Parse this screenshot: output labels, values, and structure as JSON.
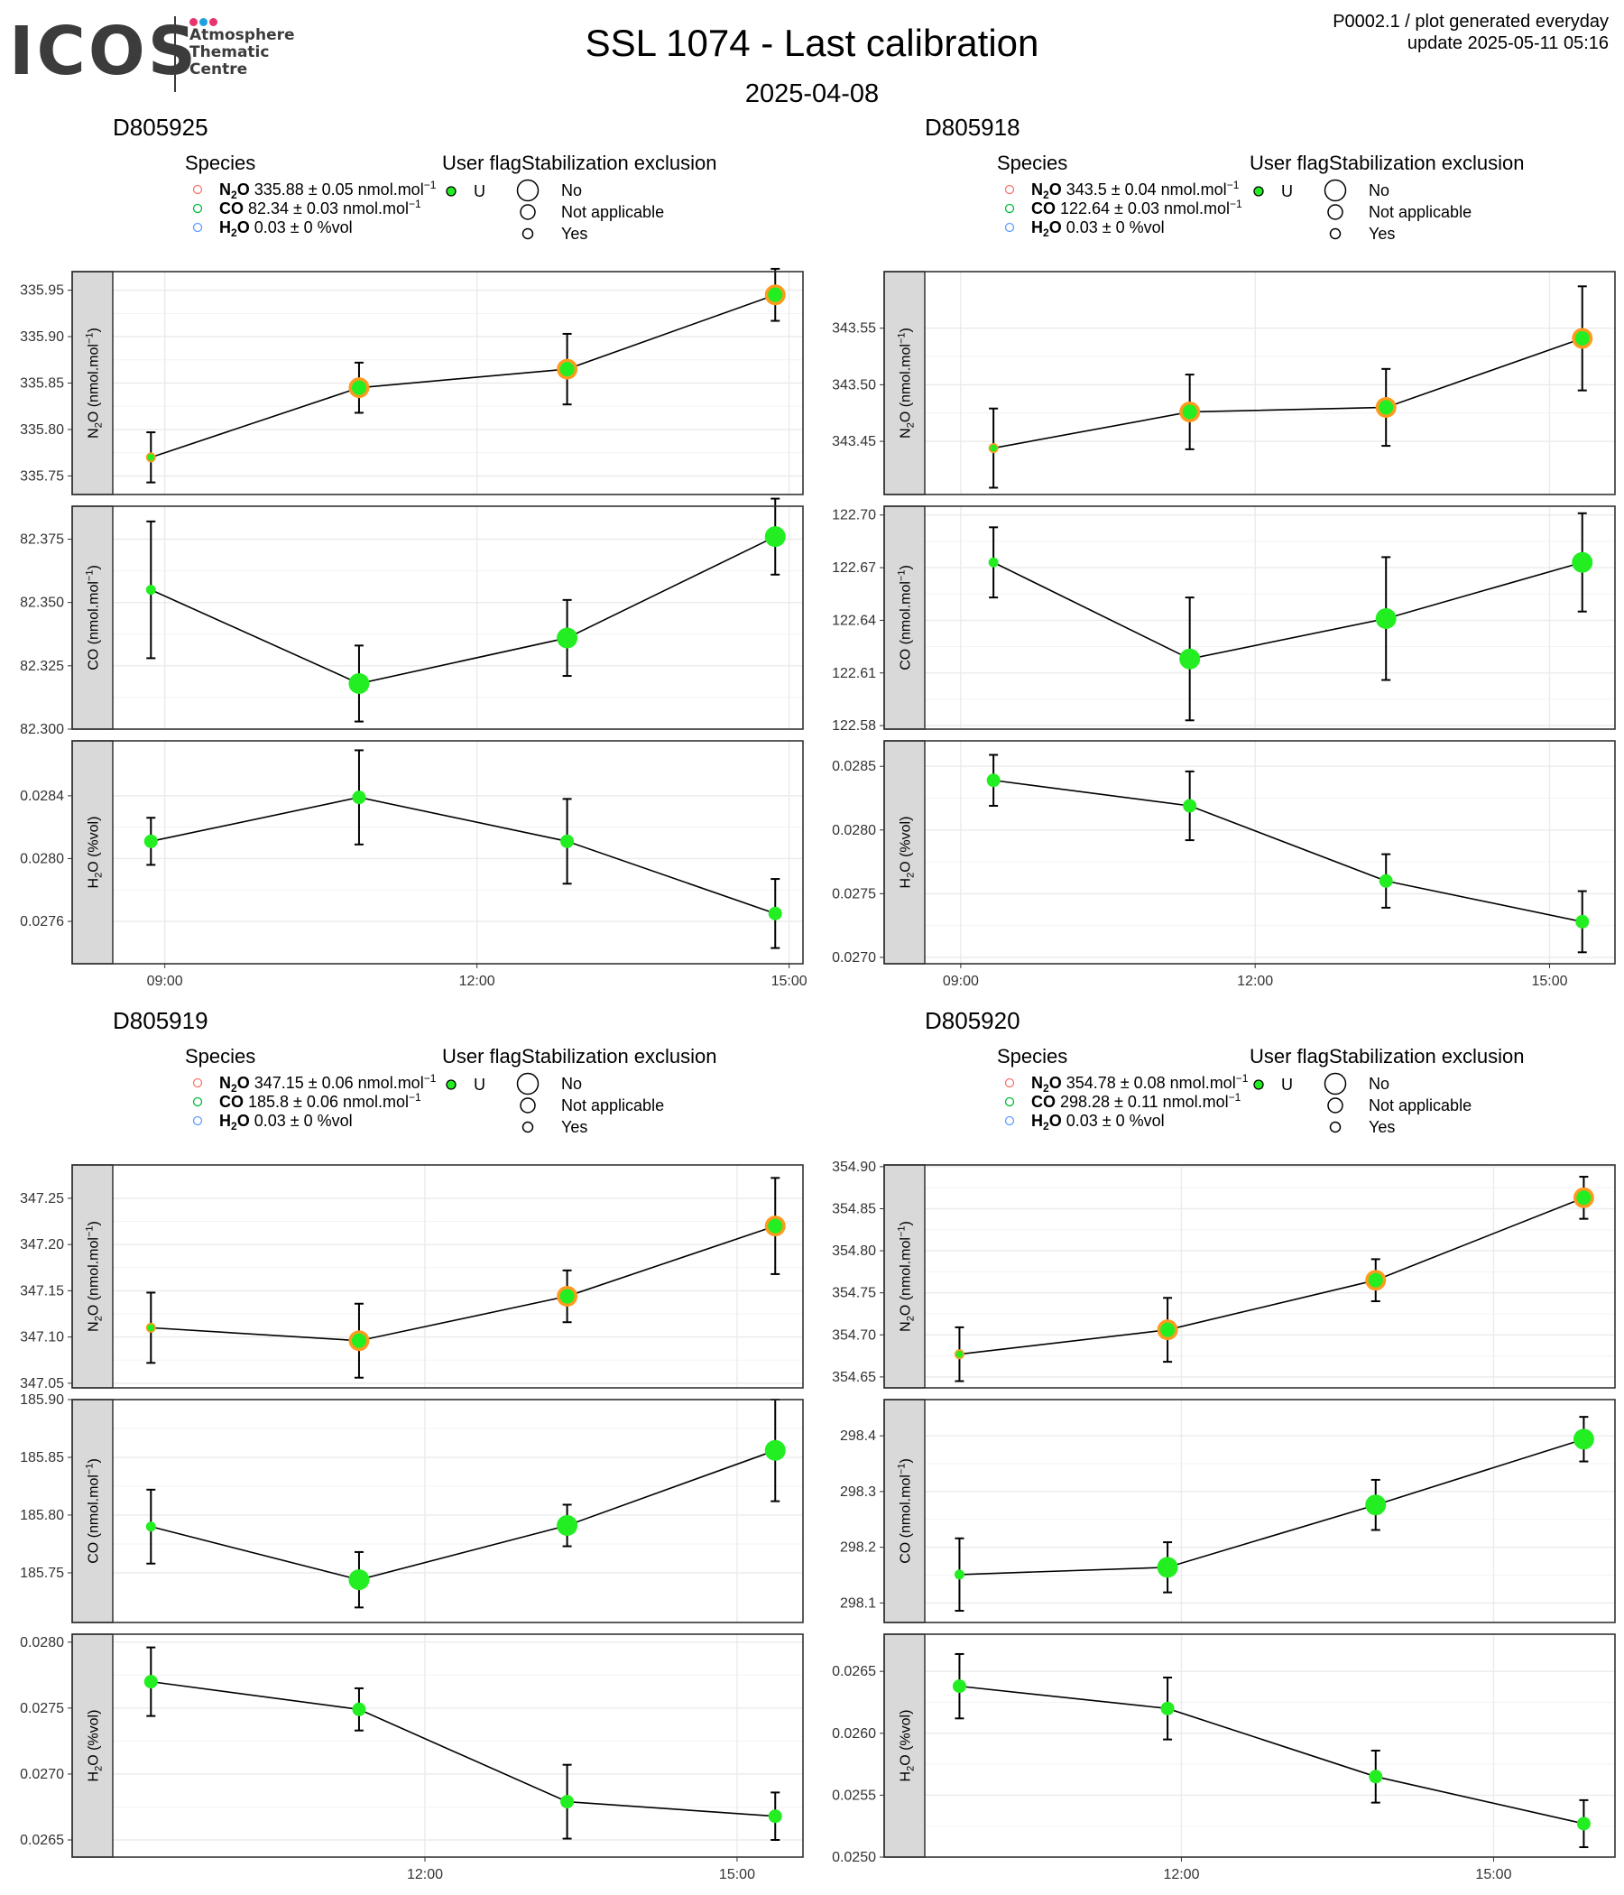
{
  "header": {
    "title": "SSL 1074 - Last calibration",
    "date": "2025-04-08",
    "meta_line1": "P0002.1 / plot generated everyday",
    "meta_line2": "update  2025-05-11 05:16"
  },
  "logo": {
    "word": "ICOS",
    "sub1": "Atmosphere",
    "sub2": "Thematic",
    "sub3": "Centre",
    "dot_colors": [
      "#e8336c",
      "#1da1e2",
      "#e8336c"
    ],
    "text_color": "#3c3c3c"
  },
  "legend": {
    "species_title": "Species",
    "flag_title": "User flag",
    "stab_title": "Stabilization exclusion",
    "flag_label": "U",
    "stab_labels": [
      "No",
      "Not applicable",
      "Yes"
    ],
    "species_colors": [
      "#F8766D",
      "#00BA38",
      "#619CFF"
    ]
  },
  "colors": {
    "point_fill": "#22ee22",
    "line": "#000000",
    "panel_border": "#333333",
    "strip_fill": "#d9d9d9",
    "grid": "#ebebeb"
  },
  "chart_data": [
    {
      "type": "scatter",
      "title": "D805925",
      "legend_entries": [
        "N2O 335.88 ± 0.05 nmol.mol-1",
        "CO 82.34 ± 0.03 nmol.mol-1",
        "H2O 0.03 ± 0 %vol"
      ],
      "legend": [
        {
          "sp": "N",
          "sub": "2",
          "rest": "O",
          "val": "335.88",
          "err": "0.05",
          "unit": "nmol.mol",
          "sup": "−1"
        },
        {
          "sp": "CO",
          "sub": "",
          "rest": "",
          "val": "82.34",
          "err": "0.03",
          "unit": "nmol.mol",
          "sup": "−1"
        },
        {
          "sp": "H",
          "sub": "2",
          "rest": "O",
          "val": "0.03",
          "err": "0",
          "unit": "%vol",
          "sup": ""
        }
      ],
      "x_axis": {
        "xlim": [
          "08:30",
          "15:08"
        ],
        "ticks": [
          "09:00",
          "12:00",
          "15:00"
        ],
        "tick_values": [
          "09:00",
          "12:00",
          "15:00"
        ]
      },
      "x": [
        "08:52",
        "10:52",
        "12:52",
        "14:52"
      ],
      "point_size": [
        "small",
        "large",
        "large",
        "large"
      ],
      "series": [
        {
          "name": "N2O (nmol.mol-1)",
          "strip": {
            "a": "N",
            "sub": "2",
            "b": "O (nmol.mol",
            "sup": "−1",
            "c": ")"
          },
          "values": [
            335.77,
            335.845,
            335.865,
            335.945
          ],
          "errors": [
            0.027,
            0.027,
            0.038,
            0.028
          ],
          "ylim": [
            335.73,
            335.97
          ],
          "ticks": [
            335.75,
            335.8,
            335.85,
            335.9,
            335.95
          ],
          "tick_labels": [
            "335.75",
            "335.80",
            "335.85",
            "335.90",
            "335.95"
          ]
        },
        {
          "name": "CO (nmol.mol-1)",
          "strip": {
            "a": "CO (nmol.mol",
            "sub": "",
            "b": "",
            "sup": "−1",
            "c": ")"
          },
          "values": [
            82.355,
            82.318,
            82.336,
            82.376
          ],
          "errors": [
            0.027,
            0.015,
            0.015,
            0.015
          ],
          "ylim": [
            82.3,
            82.388
          ],
          "ticks": [
            82.3,
            82.325,
            82.35,
            82.375
          ],
          "tick_labels": [
            "82.300",
            "82.325",
            "82.350",
            "82.375"
          ]
        },
        {
          "name": "H2O (%vol)",
          "strip": {
            "a": "H",
            "sub": "2",
            "b": "O (%vol)",
            "sup": "",
            "c": ""
          },
          "values": [
            0.02811,
            0.02839,
            0.02811,
            0.02765
          ],
          "errors": [
            0.00015,
            0.0003,
            0.00027,
            0.00022
          ],
          "ylim": [
            0.02733,
            0.02875
          ],
          "ticks": [
            0.0276,
            0.028,
            0.0284
          ],
          "tick_labels": [
            "0.0276",
            "0.0280",
            "0.0284"
          ]
        }
      ]
    },
    {
      "type": "scatter",
      "title": "D805918",
      "legend_entries": [
        "N2O 343.5 ± 0.04 nmol.mol-1",
        "CO 122.64 ± 0.03 nmol.mol-1",
        "H2O 0.03 ± 0 %vol"
      ],
      "legend": [
        {
          "sp": "N",
          "sub": "2",
          "rest": "O",
          "val": "343.5",
          "err": "0.04",
          "unit": "nmol.mol",
          "sup": "−1"
        },
        {
          "sp": "CO",
          "sub": "",
          "rest": "",
          "val": "122.64",
          "err": "0.03",
          "unit": "nmol.mol",
          "sup": "−1"
        },
        {
          "sp": "H",
          "sub": "2",
          "rest": "O",
          "val": "0.03",
          "err": "0",
          "unit": "%vol",
          "sup": ""
        }
      ],
      "x_axis": {
        "xlim": [
          "08:38",
          "15:40"
        ],
        "ticks": [
          "09:00",
          "12:00",
          "15:00"
        ],
        "tick_values": [
          "09:00",
          "12:00",
          "15:00"
        ]
      },
      "x": [
        "09:20",
        "11:20",
        "13:20",
        "15:20"
      ],
      "point_size": [
        "small",
        "large",
        "large",
        "large"
      ],
      "series": [
        {
          "name": "N2O (nmol.mol-1)",
          "strip": {
            "a": "N",
            "sub": "2",
            "b": "O (nmol.mol",
            "sup": "−1",
            "c": ")"
          },
          "values": [
            343.444,
            343.476,
            343.48,
            343.541
          ],
          "errors": [
            0.035,
            0.033,
            0.034,
            0.046
          ],
          "ylim": [
            343.403,
            343.6
          ],
          "ticks": [
            343.45,
            343.5,
            343.55
          ],
          "tick_labels": [
            "343.45",
            "343.50",
            "343.55"
          ]
        },
        {
          "name": "CO (nmol.mol-1)",
          "strip": {
            "a": "CO (nmol.mol",
            "sub": "",
            "b": "",
            "sup": "−1",
            "c": ")"
          },
          "values": [
            122.673,
            122.618,
            122.641,
            122.673
          ],
          "errors": [
            0.02,
            0.035,
            0.035,
            0.028
          ],
          "ylim": [
            122.578,
            122.705
          ],
          "ticks": [
            122.58,
            122.61,
            122.64,
            122.67,
            122.7
          ],
          "tick_labels": [
            "122.58",
            "122.61",
            "122.64",
            "122.67",
            "122.70"
          ]
        },
        {
          "name": "H2O (%vol)",
          "strip": {
            "a": "H",
            "sub": "2",
            "b": "O (%vol)",
            "sup": "",
            "c": ""
          },
          "values": [
            0.02839,
            0.02819,
            0.0276,
            0.02728
          ],
          "errors": [
            0.0002,
            0.00027,
            0.00021,
            0.00024
          ],
          "ylim": [
            0.02695,
            0.0287
          ],
          "ticks": [
            0.027,
            0.0275,
            0.028,
            0.0285
          ],
          "tick_labels": [
            "0.0270",
            "0.0275",
            "0.0280",
            "0.0285"
          ]
        }
      ]
    },
    {
      "type": "scatter",
      "title": "D805919",
      "legend_entries": [
        "N2O 347.15 ± 0.06 nmol.mol-1",
        "CO 185.8 ± 0.06 nmol.mol-1",
        "H2O 0.03 ± 0 %vol"
      ],
      "legend": [
        {
          "sp": "N",
          "sub": "2",
          "rest": "O",
          "val": "347.15",
          "err": "0.06",
          "unit": "nmol.mol",
          "sup": "−1"
        },
        {
          "sp": "CO",
          "sub": "",
          "rest": "",
          "val": "185.8",
          "err": "0.06",
          "unit": "nmol.mol",
          "sup": "−1"
        },
        {
          "sp": "H",
          "sub": "2",
          "rest": "O",
          "val": "0.03",
          "err": "0",
          "unit": "%vol",
          "sup": ""
        }
      ],
      "x_axis": {
        "xlim": [
          "09:00",
          "15:38"
        ],
        "ticks": [
          "12:00",
          "15:00"
        ],
        "tick_values": [
          "12:00",
          "15:00"
        ]
      },
      "x": [
        "09:22",
        "11:22",
        "13:22",
        "15:22"
      ],
      "point_size": [
        "small",
        "large",
        "large",
        "large"
      ],
      "series": [
        {
          "name": "N2O (nmol.mol-1)",
          "strip": {
            "a": "N",
            "sub": "2",
            "b": "O (nmol.mol",
            "sup": "−1",
            "c": ")"
          },
          "values": [
            347.11,
            347.096,
            347.144,
            347.22
          ],
          "errors": [
            0.038,
            0.04,
            0.028,
            0.052
          ],
          "ylim": [
            347.045,
            347.286
          ],
          "ticks": [
            347.05,
            347.1,
            347.15,
            347.2,
            347.25
          ],
          "tick_labels": [
            "347.05",
            "347.10",
            "347.15",
            "347.20",
            "347.25"
          ]
        },
        {
          "name": "CO (nmol.mol-1)",
          "strip": {
            "a": "CO (nmol.mol",
            "sub": "",
            "b": "",
            "sup": "−1",
            "c": ")"
          },
          "values": [
            185.79,
            185.744,
            185.791,
            185.856
          ],
          "errors": [
            0.032,
            0.024,
            0.018,
            0.044
          ],
          "ylim": [
            185.707,
            185.9
          ],
          "ticks": [
            185.75,
            185.8,
            185.85,
            185.9
          ],
          "tick_labels": [
            "185.75",
            "185.80",
            "185.85",
            "185.90"
          ]
        },
        {
          "name": "H2O (%vol)",
          "strip": {
            "a": "H",
            "sub": "2",
            "b": "O (%vol)",
            "sup": "",
            "c": ""
          },
          "values": [
            0.0277,
            0.02749,
            0.02679,
            0.02668
          ],
          "errors": [
            0.00026,
            0.00016,
            0.00028,
            0.00018
          ],
          "ylim": [
            0.02637,
            0.02806
          ],
          "ticks": [
            0.0265,
            0.027,
            0.0275,
            0.028
          ],
          "tick_labels": [
            "0.0265",
            "0.0270",
            "0.0275",
            "0.0280"
          ]
        }
      ]
    },
    {
      "type": "scatter",
      "title": "D805920",
      "legend_entries": [
        "N2O 354.78 ± 0.08 nmol.mol-1",
        "CO 298.28 ± 0.11 nmol.mol-1",
        "H2O 0.03 ± 0 %vol"
      ],
      "legend": [
        {
          "sp": "N",
          "sub": "2",
          "rest": "O",
          "val": "354.78",
          "err": "0.08",
          "unit": "nmol.mol",
          "sup": "−1"
        },
        {
          "sp": "CO",
          "sub": "",
          "rest": "",
          "val": "298.28",
          "err": "0.11",
          "unit": "nmol.mol",
          "sup": "−1"
        },
        {
          "sp": "H",
          "sub": "2",
          "rest": "O",
          "val": "0.03",
          "err": "0",
          "unit": "%vol",
          "sup": ""
        }
      ],
      "x_axis": {
        "xlim": [
          "09:32",
          "16:10"
        ],
        "ticks": [
          "12:00",
          "15:00"
        ],
        "tick_values": [
          "12:00",
          "15:00"
        ]
      },
      "x": [
        "09:52",
        "11:52",
        "13:52",
        "15:52"
      ],
      "point_size": [
        "small",
        "large",
        "large",
        "large"
      ],
      "series": [
        {
          "name": "N2O (nmol.mol-1)",
          "strip": {
            "a": "N",
            "sub": "2",
            "b": "O (nmol.mol",
            "sup": "−1",
            "c": ")"
          },
          "values": [
            354.677,
            354.706,
            354.765,
            354.863
          ],
          "errors": [
            0.032,
            0.038,
            0.025,
            0.025
          ],
          "ylim": [
            354.637,
            354.902
          ],
          "ticks": [
            354.65,
            354.7,
            354.75,
            354.8,
            354.85,
            354.9
          ],
          "tick_labels": [
            "354.65",
            "354.70",
            "354.75",
            "354.80",
            "354.85",
            "354.90"
          ]
        },
        {
          "name": "CO (nmol.mol-1)",
          "strip": {
            "a": "CO (nmol.mol",
            "sub": "",
            "b": "",
            "sup": "−1",
            "c": ")"
          },
          "values": [
            298.151,
            298.164,
            298.276,
            298.394
          ],
          "errors": [
            0.065,
            0.045,
            0.045,
            0.04
          ],
          "ylim": [
            298.065,
            298.465
          ],
          "ticks": [
            298.1,
            298.2,
            298.3,
            298.4
          ],
          "tick_labels": [
            "298.1",
            "298.2",
            "298.3",
            "298.4"
          ]
        },
        {
          "name": "H2O (%vol)",
          "strip": {
            "a": "H",
            "sub": "2",
            "b": "O (%vol)",
            "sup": "",
            "c": ""
          },
          "values": [
            0.02638,
            0.0262,
            0.02565,
            0.02527
          ],
          "errors": [
            0.00026,
            0.00025,
            0.00021,
            0.00019
          ],
          "ylim": [
            0.025,
            0.0268
          ],
          "ticks": [
            0.025,
            0.0255,
            0.026,
            0.0265
          ],
          "tick_labels": [
            "0.0250",
            "0.0255",
            "0.0260",
            "0.0265"
          ]
        }
      ]
    }
  ]
}
